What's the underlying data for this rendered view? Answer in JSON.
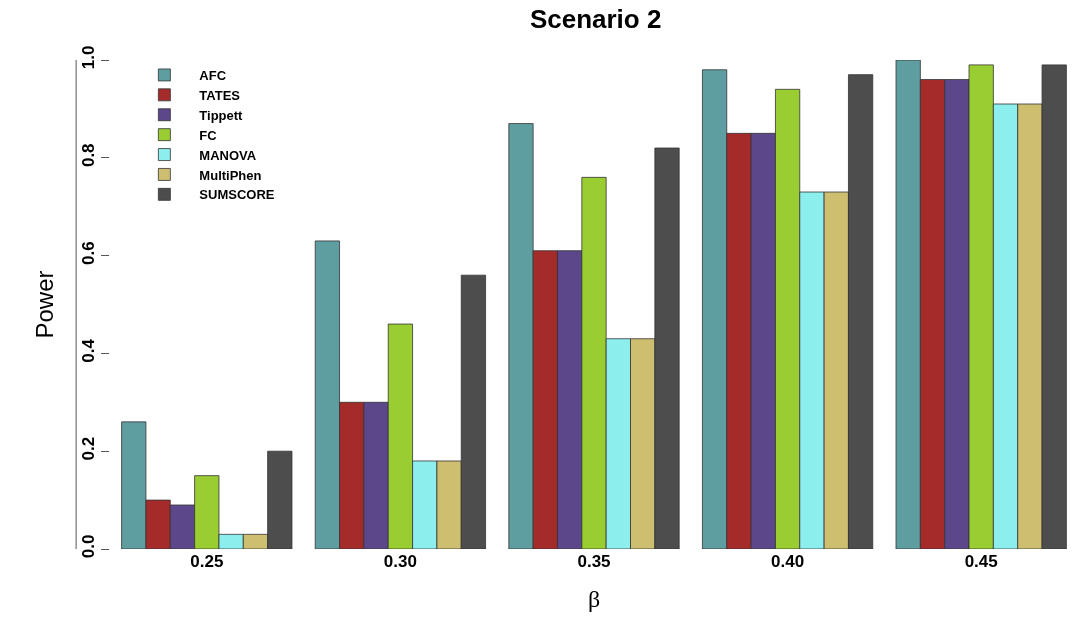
{
  "chart_data": {
    "type": "bar",
    "title": "Scenario 2",
    "xlabel": "β",
    "ylabel": "Power",
    "categories": [
      "0.25",
      "0.30",
      "0.35",
      "0.40",
      "0.45"
    ],
    "series": [
      {
        "name": "AFC",
        "color": "#5f9ea0",
        "values": [
          0.26,
          0.63,
          0.87,
          0.98,
          1.0
        ]
      },
      {
        "name": "TATES",
        "color": "#a52a2a",
        "values": [
          0.1,
          0.3,
          0.61,
          0.85,
          0.96
        ]
      },
      {
        "name": "Tippett",
        "color": "#5d478b",
        "values": [
          0.09,
          0.3,
          0.61,
          0.85,
          0.96
        ]
      },
      {
        "name": "FC",
        "color": "#9acd32",
        "values": [
          0.15,
          0.46,
          0.76,
          0.94,
          0.99
        ]
      },
      {
        "name": "MANOVA",
        "color": "#8deeee",
        "values": [
          0.03,
          0.18,
          0.43,
          0.73,
          0.91
        ]
      },
      {
        "name": "MultiPhen",
        "color": "#cdbe70",
        "values": [
          0.03,
          0.18,
          0.43,
          0.73,
          0.91
        ]
      },
      {
        "name": "SUMSCORE",
        "color": "#4d4d4d",
        "values": [
          0.2,
          0.56,
          0.82,
          0.97,
          0.99
        ]
      }
    ],
    "ylim": [
      0,
      1
    ],
    "yticks": [
      {
        "value": 0,
        "label": "0.0"
      },
      0.2,
      0.4,
      0.6,
      0.8,
      {
        "value": 1,
        "label": "1.0"
      }
    ],
    "grid": false,
    "legend": "top left"
  }
}
